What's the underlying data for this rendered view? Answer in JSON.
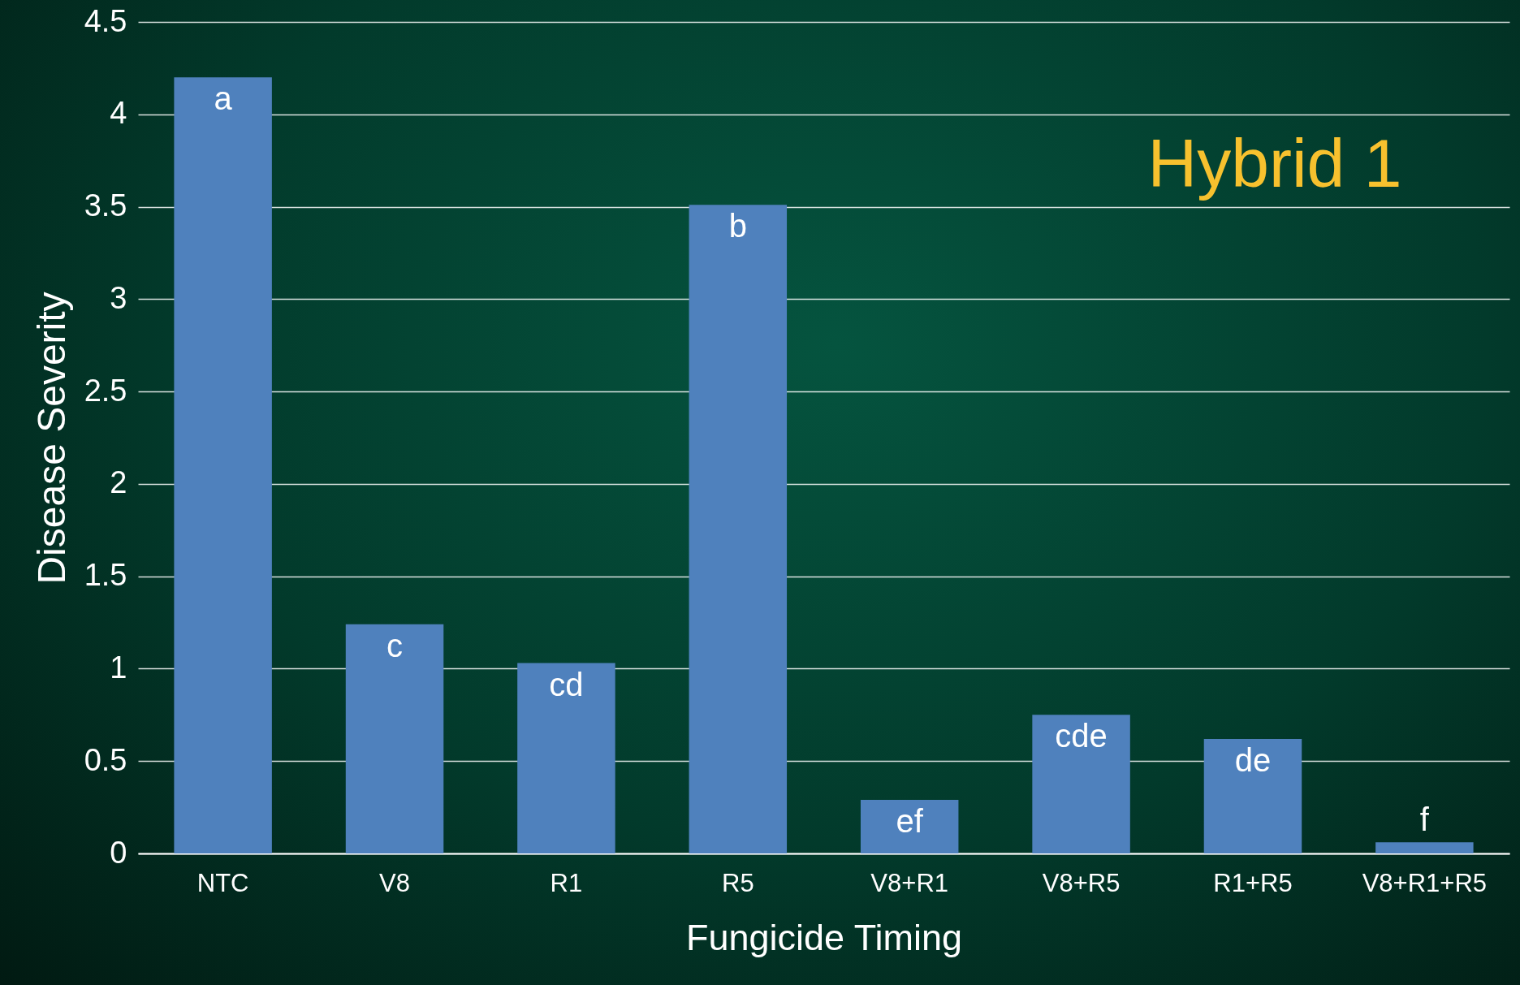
{
  "chart_data": {
    "type": "bar",
    "title": "Hybrid 1",
    "xlabel": "Fungicide Timing",
    "ylabel": "Disease Severity",
    "categories": [
      "NTC",
      "V8",
      "R1",
      "R5",
      "V8+R1",
      "V8+R5",
      "R1+R5",
      "V8+R1+R5"
    ],
    "values": [
      4.2,
      1.24,
      1.03,
      3.51,
      0.29,
      0.75,
      0.62,
      0.06
    ],
    "color": "#4f81bd",
    "ylim": [
      0,
      4.5
    ],
    "yticks": [
      0,
      0.5,
      1,
      1.5,
      2,
      2.5,
      3,
      3.5,
      4,
      4.5
    ],
    "grid": "y",
    "annotations": [
      {
        "text": "a",
        "x": "NTC",
        "y": 4.2
      },
      {
        "text": "c",
        "x": "V8",
        "y": 1.24
      },
      {
        "text": "cd",
        "x": "R1",
        "y": 1.03
      },
      {
        "text": "b",
        "x": "R5",
        "y": 3.51
      },
      {
        "text": "ef",
        "x": "V8+R1",
        "y": 0.29
      },
      {
        "text": "cde",
        "x": "V8+R5",
        "y": 0.75
      },
      {
        "text": "de",
        "x": "R1+R5",
        "y": 0.62
      },
      {
        "text": "f",
        "x": "V8+R1+R5",
        "y": 0.06
      }
    ]
  }
}
